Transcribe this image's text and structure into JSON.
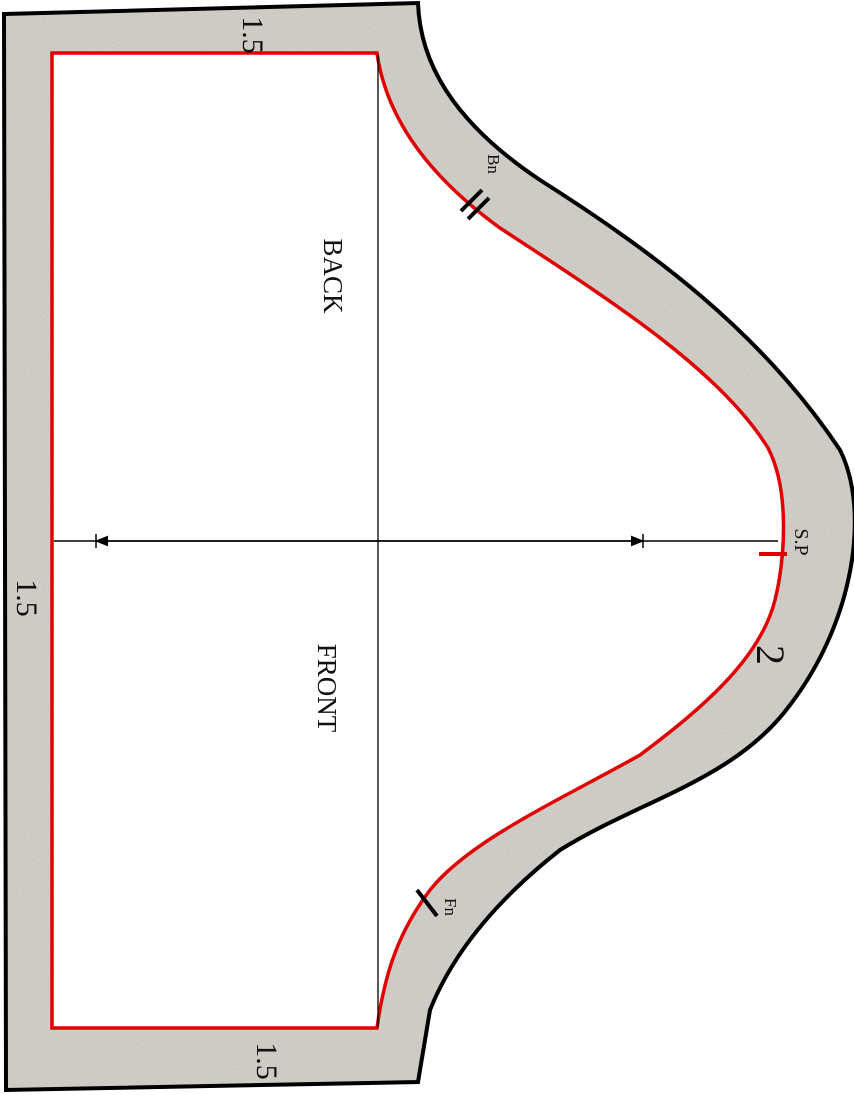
{
  "pattern": {
    "colors": {
      "background": "#ffffff",
      "seam_allowance_fill": "#dcd8d2",
      "outer_cut_line": "#000000",
      "stitch_line": "#e00000",
      "construction_line": "#000000"
    },
    "labels": {
      "back": "BACK",
      "front": "FRONT",
      "back_notch": "Bn",
      "front_notch": "Fn",
      "shoulder_point": "S.P"
    },
    "allowances": {
      "top_edge": "1.5",
      "side_edge": "1.5",
      "bottom_edge": "1.5",
      "curve_edge": "2"
    }
  }
}
